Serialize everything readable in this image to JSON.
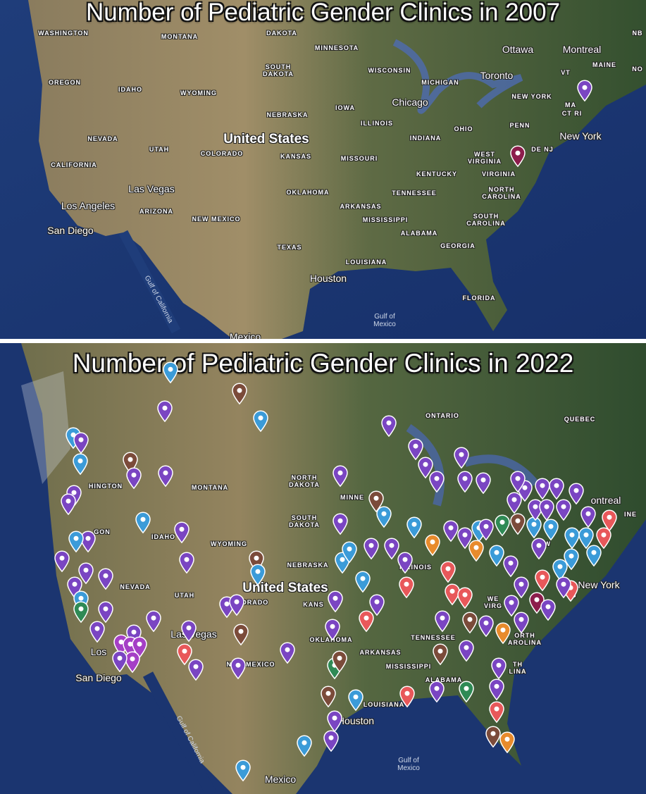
{
  "panel_2007": {
    "title": "Number of Pediatric Gender Clinics in 2007",
    "labels": [
      "WASHINGTON",
      "MONTANA",
      "DAKOTA",
      "MINNESOTA",
      "SOUTH\nDAKOTA",
      "OREGON",
      "IDAHO",
      "WYOMING",
      "WISCONSIN",
      "MICHIGAN",
      "Ottawa",
      "Montreal",
      "MAINE",
      "NB",
      "NO",
      "Toronto",
      "VT",
      "NEW YORK",
      "MA",
      "CT RI",
      "Chicago",
      "IOWA",
      "NEBRASKA",
      "ILLINOIS",
      "OHIO",
      "PENN",
      "New York",
      "DE NJ",
      "NEVADA",
      "UTAH",
      "United States",
      "COLORADO",
      "KANSAS",
      "MISSOURI",
      "INDIANA",
      "WEST\nVIRGINIA",
      "KENTUCKY",
      "VIRGINIA",
      "CALIFORNIA",
      "Las Vegas",
      "OKLAHOMA",
      "TENNESSEE",
      "NORTH\nCAROLINA",
      "Los Angeles",
      "ARIZONA",
      "ARKANSAS",
      "NEW MEXICO",
      "MISSISSIPPI",
      "SOUTH\nCAROLINA",
      "San Diego",
      "ALABAMA",
      "GEORGIA",
      "TEXAS",
      "LOUISIANA",
      "Houston",
      "FLORIDA",
      "Gulf of\nMexico",
      "Gulf of California",
      "Mexico"
    ],
    "markers": [
      "purple",
      "maroon"
    ]
  },
  "panel_2022": {
    "title": "Number of Pediatric Gender Clinics in 2022",
    "labels": [
      "ONTARIO",
      "QUEBEC",
      "NORTH\nDAKOTA",
      "MONTANA",
      "HINGTON",
      "MINNE",
      "ontreal",
      "INE",
      "SOUTH\nDAKOTA",
      "GON",
      "IDAHO",
      "WYOMING",
      "NEW",
      "NEBRASKA",
      "ILLINOIS",
      "NEVADA",
      "United States",
      "UTAH",
      "ORADO",
      "KANS",
      "New York",
      "NJ",
      "WE\nVIRG",
      "OKLAHOMA",
      "TENNESSEE",
      "ARKANSAS",
      "MISSISSIPPI",
      "ORTH\nAROLINA",
      "Las Vegas",
      "Los",
      "NEW MEXICO",
      "TH\nLINA",
      "San Diego",
      "ALABAMA",
      "LOUISIANA",
      "Houston",
      "Gulf of\nMexico",
      "Mexico",
      "Gulf of California"
    ]
  },
  "marker_colors": {
    "purple": "#7a45c2",
    "blue": "#3b9bd8",
    "brown": "#7b4b3a",
    "red": "#e8585a",
    "orange": "#e88b2c",
    "green": "#2f8a55",
    "maroon": "#8c1d4c",
    "magenta": "#a53fc6"
  }
}
